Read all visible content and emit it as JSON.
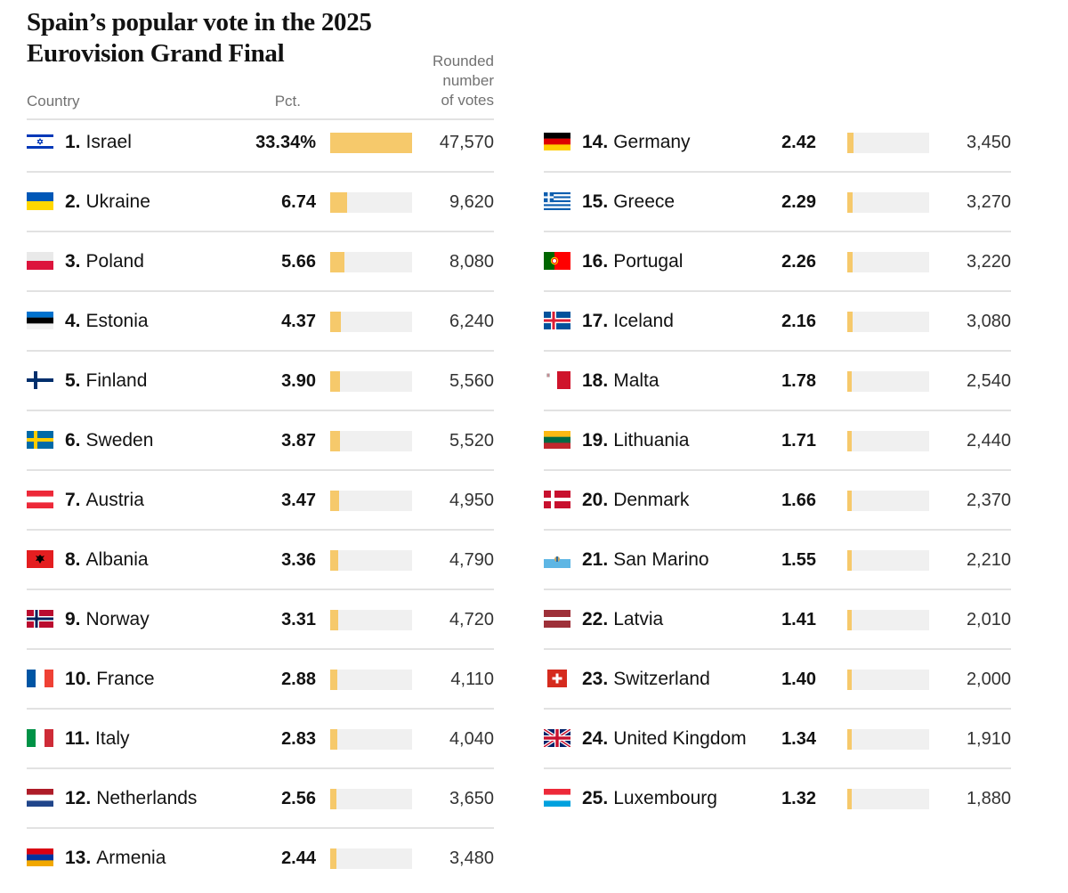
{
  "title": "Spain’s popular vote in the 2025\nEurovision Grand Final",
  "headers": {
    "country": "Country",
    "pct": "Pct.",
    "votes": "Rounded\nnumber\nof votes"
  },
  "colors": {
    "bar": "#f6c96b",
    "track": "#f0f0f0",
    "rule": "#e2e2e2"
  },
  "chart_data": {
    "type": "table",
    "title": "Spain’s popular vote in the 2025 Eurovision Grand Final",
    "columns": [
      "Country",
      "Pct.",
      "Rounded number of votes"
    ],
    "bar_max_pct": 33.34,
    "rows": [
      {
        "rank": "1.",
        "country": "Israel",
        "flag": "israel-flag",
        "pct": "33.34%",
        "pct_value": 33.34,
        "votes": "47,570"
      },
      {
        "rank": "2.",
        "country": "Ukraine",
        "flag": "ukraine-flag",
        "pct": "6.74",
        "pct_value": 6.74,
        "votes": "9,620"
      },
      {
        "rank": "3.",
        "country": "Poland",
        "flag": "poland-flag",
        "pct": "5.66",
        "pct_value": 5.66,
        "votes": "8,080"
      },
      {
        "rank": "4.",
        "country": "Estonia",
        "flag": "estonia-flag",
        "pct": "4.37",
        "pct_value": 4.37,
        "votes": "6,240"
      },
      {
        "rank": "5.",
        "country": "Finland",
        "flag": "finland-flag",
        "pct": "3.90",
        "pct_value": 3.9,
        "votes": "5,560"
      },
      {
        "rank": "6.",
        "country": "Sweden",
        "flag": "sweden-flag",
        "pct": "3.87",
        "pct_value": 3.87,
        "votes": "5,520"
      },
      {
        "rank": "7.",
        "country": "Austria",
        "flag": "austria-flag",
        "pct": "3.47",
        "pct_value": 3.47,
        "votes": "4,950"
      },
      {
        "rank": "8.",
        "country": "Albania",
        "flag": "albania-flag",
        "pct": "3.36",
        "pct_value": 3.36,
        "votes": "4,790"
      },
      {
        "rank": "9.",
        "country": "Norway",
        "flag": "norway-flag",
        "pct": "3.31",
        "pct_value": 3.31,
        "votes": "4,720"
      },
      {
        "rank": "10.",
        "country": "France",
        "flag": "france-flag",
        "pct": "2.88",
        "pct_value": 2.88,
        "votes": "4,110"
      },
      {
        "rank": "11.",
        "country": "Italy",
        "flag": "italy-flag",
        "pct": "2.83",
        "pct_value": 2.83,
        "votes": "4,040"
      },
      {
        "rank": "12.",
        "country": "Netherlands",
        "flag": "netherlands-flag",
        "pct": "2.56",
        "pct_value": 2.56,
        "votes": "3,650"
      },
      {
        "rank": "13.",
        "country": "Armenia",
        "flag": "armenia-flag",
        "pct": "2.44",
        "pct_value": 2.44,
        "votes": "3,480"
      },
      {
        "rank": "14.",
        "country": "Germany",
        "flag": "germany-flag",
        "pct": "2.42",
        "pct_value": 2.42,
        "votes": "3,450"
      },
      {
        "rank": "15.",
        "country": "Greece",
        "flag": "greece-flag",
        "pct": "2.29",
        "pct_value": 2.29,
        "votes": "3,270"
      },
      {
        "rank": "16.",
        "country": "Portugal",
        "flag": "portugal-flag",
        "pct": "2.26",
        "pct_value": 2.26,
        "votes": "3,220"
      },
      {
        "rank": "17.",
        "country": "Iceland",
        "flag": "iceland-flag",
        "pct": "2.16",
        "pct_value": 2.16,
        "votes": "3,080"
      },
      {
        "rank": "18.",
        "country": "Malta",
        "flag": "malta-flag",
        "pct": "1.78",
        "pct_value": 1.78,
        "votes": "2,540"
      },
      {
        "rank": "19.",
        "country": "Lithuania",
        "flag": "lithuania-flag",
        "pct": "1.71",
        "pct_value": 1.71,
        "votes": "2,440"
      },
      {
        "rank": "20.",
        "country": "Denmark",
        "flag": "denmark-flag",
        "pct": "1.66",
        "pct_value": 1.66,
        "votes": "2,370"
      },
      {
        "rank": "21.",
        "country": "San Marino",
        "flag": "san-marino-flag",
        "pct": "1.55",
        "pct_value": 1.55,
        "votes": "2,210"
      },
      {
        "rank": "22.",
        "country": "Latvia",
        "flag": "latvia-flag",
        "pct": "1.41",
        "pct_value": 1.41,
        "votes": "2,010"
      },
      {
        "rank": "23.",
        "country": "Switzerland",
        "flag": "switzerland-flag",
        "pct": "1.40",
        "pct_value": 1.4,
        "votes": "2,000"
      },
      {
        "rank": "24.",
        "country": "United Kingdom",
        "flag": "united-kingdom-flag",
        "pct": "1.34",
        "pct_value": 1.34,
        "votes": "1,910"
      },
      {
        "rank": "25.",
        "country": "Luxembourg",
        "flag": "luxembourg-flag",
        "pct": "1.32",
        "pct_value": 1.32,
        "votes": "1,880"
      }
    ]
  }
}
